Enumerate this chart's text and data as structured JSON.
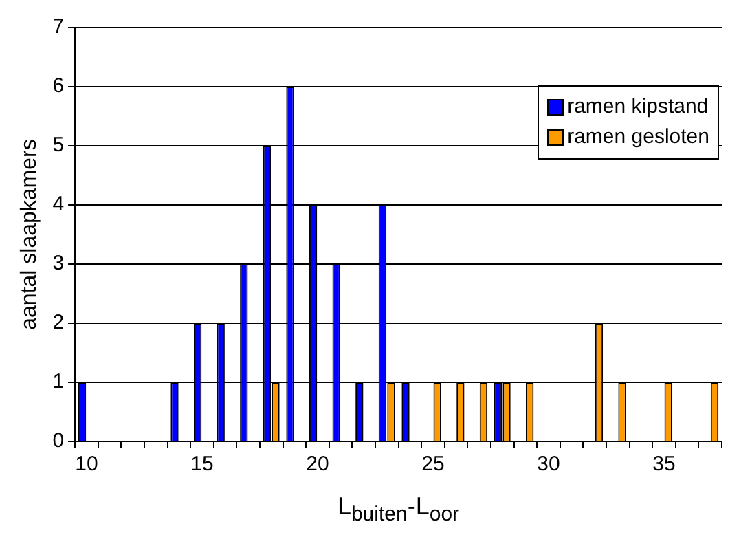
{
  "chart_data": {
    "type": "bar",
    "xlabel": "L$_{buiten}$-L$_{oor}$",
    "ylabel": "aantal slaapkamers",
    "categories": [
      "10",
      null,
      null,
      null,
      null,
      "15",
      null,
      null,
      null,
      null,
      "20",
      null,
      null,
      null,
      null,
      "25",
      null,
      null,
      null,
      null,
      "30",
      null,
      null,
      null,
      null,
      "35",
      null,
      null
    ],
    "series": [
      {
        "name": "ramen kipstand",
        "color": "#0000ff",
        "values": [
          1,
          0,
          0,
          0,
          1,
          2,
          2,
          3,
          5,
          6,
          4,
          3,
          1,
          4,
          1,
          0,
          0,
          0,
          1,
          0,
          0,
          0,
          0,
          0,
          0,
          0,
          0,
          0
        ]
      },
      {
        "name": "ramen gesloten",
        "color": "#ff9900",
        "values": [
          0,
          0,
          0,
          0,
          0,
          0,
          0,
          0,
          1,
          0,
          0,
          0,
          0,
          1,
          0,
          1,
          1,
          1,
          1,
          1,
          0,
          0,
          2,
          1,
          0,
          1,
          0,
          1
        ]
      }
    ],
    "ylim": [
      0,
      7
    ],
    "yticks": [
      0,
      1,
      2,
      3,
      4,
      5,
      6,
      7
    ],
    "grid": "y",
    "legend": "top right"
  }
}
